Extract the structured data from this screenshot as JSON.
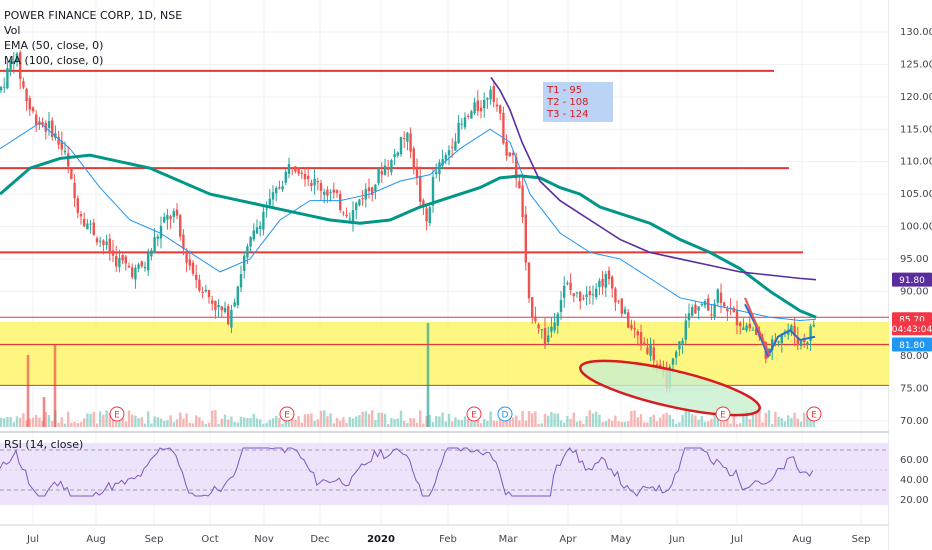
{
  "legend": {
    "title": "POWER FINANCE CORP, 1D, NSE",
    "vol": "Vol",
    "ema": "EMA (50, close, 0)",
    "ma": "MA (100, close, 0)"
  },
  "rsi_legend": "RSI (14, close)",
  "annotation": {
    "targets": [
      "T1 - 95",
      "T2 - 108",
      "T3 - 124"
    ],
    "background": "#bbd4f6",
    "text_color": "#d81b20"
  },
  "price_badges": [
    {
      "label": "91.80",
      "value": 91.8,
      "color": "#5b2c9e"
    },
    {
      "label": "85.70",
      "value": 85.7,
      "color": "#f23645"
    },
    {
      "label": "04:43:04",
      "value": 84.3,
      "color": "#f23645"
    },
    {
      "label": "81.80",
      "value": 81.8,
      "color": "#2196f3"
    }
  ],
  "colors": {
    "up": "#26a69a",
    "down": "#ef5350",
    "ema": "#2196f3",
    "ma": "#009688",
    "falling_ma": "#5b2c9e",
    "support_lines": "#e53935",
    "zone_fill": "#fdf56a",
    "ellipse_fill": "#c8f0ce",
    "rsi_line": "#7e57c2",
    "rsi_band": "#ede4fb"
  },
  "chart_data": {
    "type": "candlestick",
    "title": "POWER FINANCE CORP, 1D, NSE",
    "y_axis": {
      "ticks": [
        "130.00",
        "125.00",
        "120.00",
        "115.00",
        "110.00",
        "105.00",
        "100.00",
        "95.00",
        "90.00",
        "85.00",
        "80.00",
        "75.00",
        "70.00"
      ],
      "range": [
        68,
        132
      ]
    },
    "x_axis": {
      "ticks": [
        {
          "label": "Jul",
          "bold": false
        },
        {
          "label": "Aug",
          "bold": false
        },
        {
          "label": "Sep",
          "bold": false
        },
        {
          "label": "Oct",
          "bold": false
        },
        {
          "label": "Nov",
          "bold": false
        },
        {
          "label": "Dec",
          "bold": false
        },
        {
          "label": "2020",
          "bold": true
        },
        {
          "label": "Feb",
          "bold": false
        },
        {
          "label": "Mar",
          "bold": false
        },
        {
          "label": "Apr",
          "bold": false
        },
        {
          "label": "May",
          "bold": false
        },
        {
          "label": "Jun",
          "bold": false
        },
        {
          "label": "Jul",
          "bold": false
        },
        {
          "label": "Aug",
          "bold": false
        },
        {
          "label": "Sep",
          "bold": false
        }
      ]
    },
    "horizontal_levels": [
      124,
      109,
      96,
      81.8
    ],
    "zone": [
      75.5,
      86
    ],
    "price_path": [
      [
        0,
        121
      ],
      [
        8,
        124
      ],
      [
        15,
        127
      ],
      [
        22,
        122
      ],
      [
        30,
        118
      ],
      [
        40,
        116
      ],
      [
        52,
        115
      ],
      [
        65,
        111
      ],
      [
        75,
        104
      ],
      [
        85,
        101
      ],
      [
        95,
        99
      ],
      [
        105,
        97
      ],
      [
        115,
        95
      ],
      [
        125,
        94
      ],
      [
        135,
        93
      ],
      [
        145,
        94
      ],
      [
        155,
        98
      ],
      [
        165,
        101
      ],
      [
        175,
        102
      ],
      [
        182,
        97
      ],
      [
        190,
        94
      ],
      [
        200,
        91
      ],
      [
        210,
        89
      ],
      [
        220,
        87
      ],
      [
        228,
        86
      ],
      [
        236,
        90
      ],
      [
        244,
        95
      ],
      [
        252,
        98
      ],
      [
        262,
        102
      ],
      [
        272,
        104
      ],
      [
        282,
        107
      ],
      [
        292,
        110
      ],
      [
        302,
        109
      ],
      [
        312,
        107
      ],
      [
        322,
        106
      ],
      [
        332,
        105
      ],
      [
        342,
        103
      ],
      [
        352,
        102
      ],
      [
        362,
        105
      ],
      [
        372,
        106
      ],
      [
        382,
        109
      ],
      [
        392,
        110
      ],
      [
        402,
        114
      ],
      [
        410,
        113
      ],
      [
        418,
        106
      ],
      [
        426,
        100
      ],
      [
        434,
        108
      ],
      [
        444,
        110
      ],
      [
        454,
        114
      ],
      [
        464,
        116
      ],
      [
        474,
        118
      ],
      [
        484,
        119
      ],
      [
        491,
        122
      ],
      [
        498,
        118
      ],
      [
        506,
        112
      ],
      [
        514,
        110
      ],
      [
        522,
        103
      ],
      [
        528,
        88
      ],
      [
        536,
        86
      ],
      [
        546,
        82
      ],
      [
        556,
        87
      ],
      [
        566,
        91
      ],
      [
        576,
        89
      ],
      [
        586,
        90
      ],
      [
        596,
        91
      ],
      [
        606,
        92
      ],
      [
        614,
        90
      ],
      [
        622,
        87
      ],
      [
        632,
        84
      ],
      [
        642,
        82
      ],
      [
        652,
        81
      ],
      [
        660,
        77
      ],
      [
        666,
        76
      ],
      [
        674,
        79
      ],
      [
        682,
        83
      ],
      [
        690,
        87
      ],
      [
        700,
        88
      ],
      [
        710,
        87
      ],
      [
        718,
        90
      ],
      [
        726,
        88
      ],
      [
        734,
        86
      ],
      [
        744,
        85
      ],
      [
        754,
        84
      ],
      [
        762,
        82
      ],
      [
        768,
        80
      ],
      [
        776,
        83
      ],
      [
        784,
        84
      ],
      [
        792,
        84
      ],
      [
        800,
        82
      ],
      [
        808,
        83
      ],
      [
        816,
        86
      ]
    ],
    "series": [
      {
        "name": "EMA (50, close, 0)",
        "points": [
          [
            0,
            112
          ],
          [
            40,
            116
          ],
          [
            70,
            112
          ],
          [
            100,
            106
          ],
          [
            130,
            101
          ],
          [
            160,
            99
          ],
          [
            190,
            96
          ],
          [
            220,
            93
          ],
          [
            250,
            95
          ],
          [
            280,
            101
          ],
          [
            310,
            104
          ],
          [
            340,
            104
          ],
          [
            370,
            105
          ],
          [
            400,
            107
          ],
          [
            430,
            108
          ],
          [
            460,
            112
          ],
          [
            490,
            115
          ],
          [
            510,
            113
          ],
          [
            530,
            105
          ],
          [
            560,
            99
          ],
          [
            590,
            96
          ],
          [
            620,
            95
          ],
          [
            650,
            92
          ],
          [
            680,
            89
          ],
          [
            710,
            88
          ],
          [
            740,
            87
          ],
          [
            770,
            86
          ],
          [
            800,
            85.5
          ],
          [
            816,
            85.7
          ]
        ]
      },
      {
        "name": "MA (100, close, 0)",
        "points": [
          [
            0,
            105
          ],
          [
            30,
            109
          ],
          [
            60,
            110.5
          ],
          [
            90,
            111
          ],
          [
            120,
            110
          ],
          [
            150,
            109
          ],
          [
            180,
            107
          ],
          [
            210,
            105
          ],
          [
            240,
            104
          ],
          [
            270,
            103
          ],
          [
            300,
            102
          ],
          [
            330,
            101
          ],
          [
            360,
            100.5
          ],
          [
            390,
            101
          ],
          [
            420,
            103
          ],
          [
            450,
            104.5
          ],
          [
            480,
            106
          ],
          [
            500,
            107.5
          ],
          [
            520,
            107.8
          ],
          [
            540,
            107.5
          ],
          [
            560,
            106
          ],
          [
            580,
            105
          ],
          [
            600,
            103
          ],
          [
            620,
            102
          ],
          [
            650,
            100.5
          ],
          [
            680,
            98
          ],
          [
            710,
            96
          ],
          [
            740,
            93.5
          ],
          [
            770,
            90
          ],
          [
            800,
            87
          ],
          [
            816,
            86
          ]
        ]
      }
    ],
    "rsi": {
      "ticks": [
        "60.00",
        "40.00",
        "20.00"
      ],
      "range": [
        18,
        75
      ],
      "bands": [
        30,
        70
      ]
    }
  }
}
